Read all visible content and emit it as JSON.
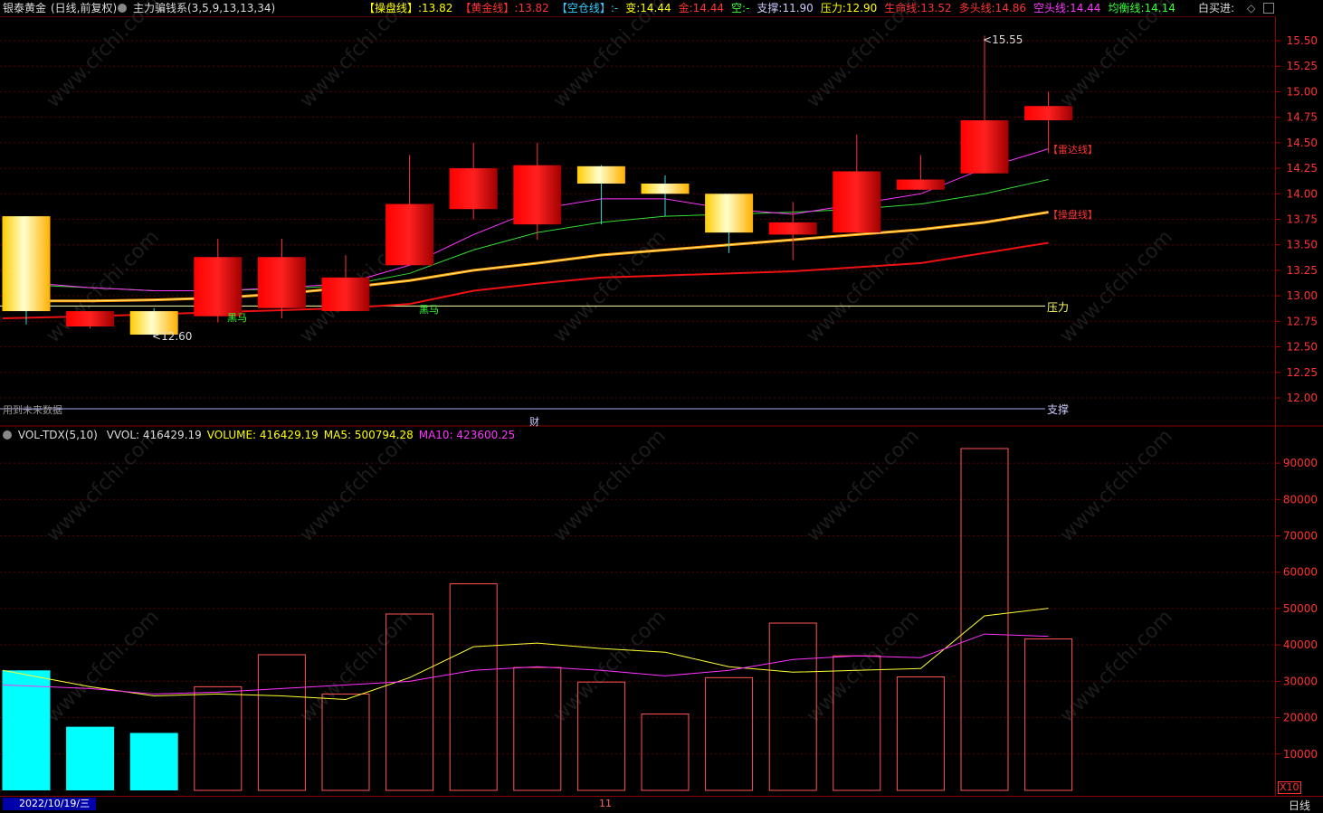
{
  "header": {
    "stock_name": "银泰黄金",
    "period_label": "(日线,前复权)",
    "indicator_name": "主力骗钱系(3,5,9,13,13,34)",
    "items": [
      {
        "label": "【操盘线】:",
        "value": "13.82",
        "color": "#ffff00"
      },
      {
        "label": "【黄金线】:",
        "value": "13.82",
        "color": "#ff3333"
      },
      {
        "label": "【空仓线】:",
        "value": "-",
        "color": "#33ccff"
      },
      {
        "label": "变:",
        "value": "14.44",
        "color": "#ffff00"
      },
      {
        "label": "金:",
        "value": "14.44",
        "color": "#ff3333"
      },
      {
        "label": "空:",
        "value": "-",
        "color": "#33ff33"
      },
      {
        "label": "支撑:",
        "value": "11.90",
        "color": "#ccccff"
      },
      {
        "label": "压力:",
        "value": "12.90",
        "color": "#ffff00"
      },
      {
        "label": "生命线:",
        "value": "13.52",
        "color": "#ff3333"
      },
      {
        "label": "多头线:",
        "value": "14.86",
        "color": "#ff3333"
      },
      {
        "label": "空头线:",
        "value": "14.44",
        "color": "#ff33ff"
      },
      {
        "label": "均衡线:",
        "value": "14.14",
        "color": "#33ff33"
      }
    ],
    "right_label": "白买进:",
    "right_icons": [
      "diamond-icon",
      "expand-icon"
    ]
  },
  "main_panel": {
    "price_axis_ticks": [
      "15.50",
      "15.25",
      "15.00",
      "14.75",
      "14.50",
      "14.25",
      "14.00",
      "13.75",
      "13.50",
      "13.25",
      "13.00",
      "12.75",
      "12.50",
      "12.25",
      "12.00"
    ],
    "annotations": {
      "high_label": "15.55",
      "low_label": "12.60",
      "radar_line_label": "【雷达线】",
      "trade_line_label": "【操盘线】",
      "pressure_label": "压力",
      "support_label": "支撑",
      "future_data_label": "用到未来数据",
      "finance_marker": "财",
      "black_horse_label": "黑马"
    }
  },
  "volume_panel": {
    "title": "VOL-TDX(5,10)",
    "items": [
      {
        "label": "VVOL:",
        "value": "416429.19",
        "color": "#dddddd"
      },
      {
        "label": "VOLUME:",
        "value": "416429.19",
        "color": "#ffff00"
      },
      {
        "label": "MA5:",
        "value": "500794.28",
        "color": "#ffff00"
      },
      {
        "label": "MA10:",
        "value": "423600.25",
        "color": "#ff33ff"
      }
    ],
    "axis_ticks": [
      "90000",
      "80000",
      "70000",
      "60000",
      "50000",
      "40000",
      "30000",
      "20000",
      "10000"
    ],
    "unit_label": "X10"
  },
  "footer": {
    "date_label": "2022/10/19/三",
    "month_marker": "11",
    "period_button": "日线"
  },
  "chart_data": {
    "type": "candlestick",
    "bars": [
      {
        "open": 13.78,
        "high": 13.78,
        "low": 12.72,
        "close": 12.85,
        "volume": 33000,
        "color": "mixed-yellow"
      },
      {
        "open": 12.85,
        "high": 12.85,
        "low": 12.68,
        "close": 12.7,
        "volume": 17500,
        "color": "red"
      },
      {
        "open": 12.85,
        "high": 12.88,
        "low": 12.6,
        "close": 12.62,
        "volume": 15800,
        "color": "mixed-yellow"
      },
      {
        "open": 12.8,
        "high": 13.56,
        "low": 12.74,
        "close": 13.38,
        "volume": 28500,
        "color": "red"
      },
      {
        "open": 12.88,
        "high": 13.56,
        "low": 12.78,
        "close": 13.38,
        "volume": 37300,
        "color": "red"
      },
      {
        "open": 12.85,
        "high": 13.4,
        "low": 12.85,
        "close": 13.18,
        "volume": 26500,
        "color": "red"
      },
      {
        "open": 13.3,
        "high": 14.38,
        "low": 13.3,
        "close": 13.9,
        "volume": 48500,
        "color": "red"
      },
      {
        "open": 13.85,
        "high": 14.5,
        "low": 13.75,
        "close": 14.25,
        "volume": 56800,
        "color": "red"
      },
      {
        "open": 13.7,
        "high": 14.5,
        "low": 13.55,
        "close": 14.28,
        "volume": 33800,
        "color": "red"
      },
      {
        "open": 14.1,
        "high": 14.28,
        "low": 13.7,
        "close": 14.27,
        "volume": 29800,
        "color": "mixed-yellow"
      },
      {
        "open": 14.0,
        "high": 14.18,
        "low": 13.78,
        "close": 14.1,
        "volume": 21000,
        "color": "mixed-yellow"
      },
      {
        "open": 13.62,
        "high": 14.0,
        "low": 13.42,
        "close": 14.0,
        "volume": 31000,
        "color": "mixed-yellow"
      },
      {
        "open": 13.6,
        "high": 13.92,
        "low": 13.35,
        "close": 13.72,
        "volume": 46000,
        "color": "red"
      },
      {
        "open": 13.62,
        "high": 14.58,
        "low": 13.62,
        "close": 14.22,
        "volume": 37000,
        "color": "red"
      },
      {
        "open": 14.04,
        "high": 14.38,
        "low": 14.04,
        "close": 14.14,
        "volume": 31200,
        "color": "red"
      },
      {
        "open": 14.2,
        "high": 15.55,
        "low": 14.2,
        "close": 14.72,
        "volume": 94000,
        "color": "red"
      },
      {
        "open": 14.72,
        "high": 15.0,
        "low": 14.4,
        "close": 14.86,
        "volume": 41643,
        "color": "red"
      }
    ],
    "lines": {
      "radar": [
        13.15,
        13.08,
        13.05,
        13.05,
        13.08,
        13.12,
        13.3,
        13.6,
        13.85,
        13.95,
        13.95,
        13.85,
        13.8,
        13.9,
        14.0,
        14.25,
        14.44
      ],
      "balance": [
        13.12,
        13.08,
        13.05,
        13.05,
        13.07,
        13.1,
        13.22,
        13.45,
        13.62,
        13.72,
        13.78,
        13.8,
        13.82,
        13.85,
        13.9,
        14.0,
        14.14
      ],
      "trade": [
        12.95,
        12.95,
        12.96,
        12.98,
        13.02,
        13.08,
        13.15,
        13.25,
        13.32,
        13.4,
        13.45,
        13.5,
        13.55,
        13.6,
        13.65,
        13.72,
        13.82
      ],
      "life": [
        12.78,
        12.8,
        12.82,
        12.84,
        12.86,
        12.88,
        12.92,
        13.05,
        13.12,
        13.18,
        13.2,
        13.22,
        13.24,
        13.28,
        13.32,
        13.42,
        13.52
      ],
      "pressure": 12.9,
      "support": 11.9
    },
    "volume_ma5": [
      33000,
      28500,
      26000,
      26500,
      26000,
      25000,
      31000,
      39500,
      40500,
      39000,
      38000,
      34000,
      32500,
      33000,
      33500,
      48000,
      50079
    ],
    "volume_ma10": [
      29000,
      28000,
      26500,
      27000,
      28000,
      29000,
      30000,
      33000,
      34000,
      33000,
      31500,
      33000,
      36000,
      37000,
      36500,
      43000,
      42360
    ]
  }
}
